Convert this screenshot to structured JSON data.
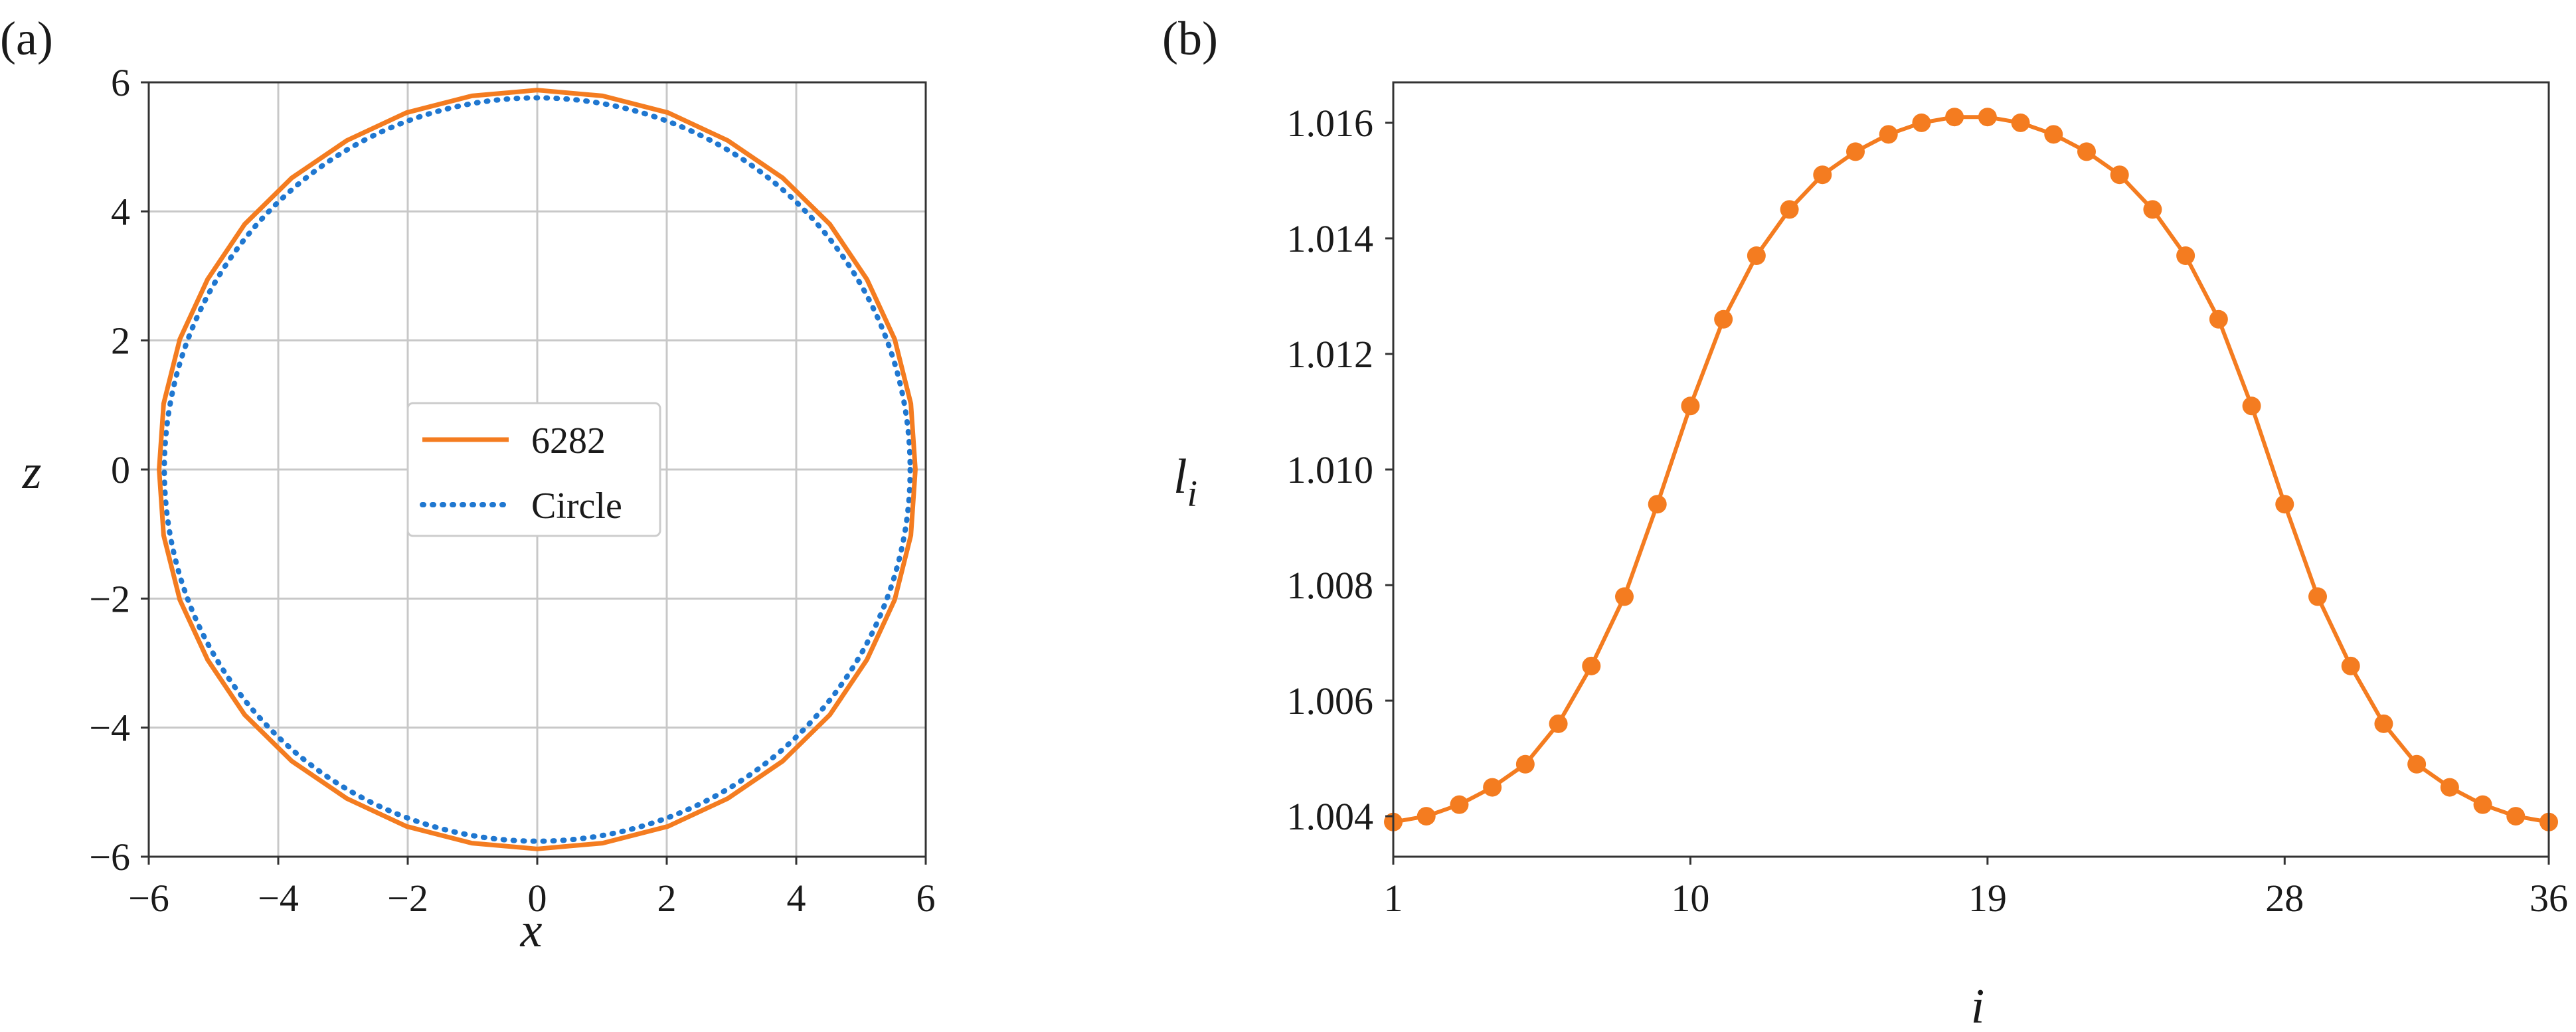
{
  "chart_data": [
    {
      "type": "line",
      "panel_label": "(a)",
      "xlabel": "x",
      "ylabel": "z",
      "xlim": [
        -6,
        6
      ],
      "ylim": [
        -6,
        6
      ],
      "xticks": [
        -6,
        -4,
        -2,
        0,
        2,
        4,
        6
      ],
      "yticks": [
        -6,
        -4,
        -2,
        0,
        2,
        4,
        6
      ],
      "xtick_labels": [
        "−6",
        "−4",
        "−2",
        "0",
        "2",
        "4",
        "6"
      ],
      "ytick_labels": [
        "−6",
        "−4",
        "−2",
        "0",
        "2",
        "4",
        "6"
      ],
      "grid": true,
      "legend_position": "center",
      "series": [
        {
          "name": "6282",
          "color": "#f47c20",
          "style": "solid",
          "shape": "closed polygon of 36 vertices",
          "vertices_x": [
            0.0,
            1.01,
            2.02,
            2.94,
            3.79,
            4.52,
            5.09,
            5.52,
            5.77,
            5.84,
            5.77,
            5.52,
            5.09,
            4.52,
            3.79,
            2.94,
            2.02,
            1.01,
            0.0,
            -1.01,
            -2.02,
            -2.94,
            -3.79,
            -4.52,
            -5.09,
            -5.52,
            -5.77,
            -5.84,
            -5.77,
            -5.52,
            -5.09,
            -4.52,
            -3.79,
            -2.94,
            -2.02,
            -1.01
          ],
          "vertices_z": [
            5.88,
            5.79,
            5.53,
            5.1,
            4.52,
            3.8,
            2.95,
            2.02,
            1.02,
            0.0,
            -1.02,
            -2.02,
            -2.95,
            -3.8,
            -4.52,
            -5.1,
            -5.53,
            -5.79,
            -5.88,
            -5.79,
            -5.53,
            -5.1,
            -4.52,
            -3.8,
            -2.95,
            -2.02,
            -1.02,
            0.0,
            1.02,
            2.02,
            2.95,
            3.8,
            4.52,
            5.1,
            5.53,
            5.79
          ]
        },
        {
          "name": "Circle",
          "color": "#1f77d0",
          "style": "dotted",
          "shape": "circle",
          "center": [
            0,
            0
          ],
          "radius": 5.76
        }
      ]
    },
    {
      "type": "line",
      "panel_label": "(b)",
      "xlabel": "i",
      "ylabel": "l",
      "ylabel_subscript": "i",
      "xlim": [
        1,
        36
      ],
      "ylim": [
        1.0033,
        1.0167
      ],
      "xticks": [
        1,
        10,
        19,
        28,
        36
      ],
      "yticks": [
        1.004,
        1.006,
        1.008,
        1.01,
        1.012,
        1.014,
        1.016
      ],
      "xtick_labels": [
        "1",
        "10",
        "19",
        "28",
        "36"
      ],
      "ytick_labels": [
        "1.004",
        "1.006",
        "1.008",
        "1.010",
        "1.012",
        "1.014",
        "1.016"
      ],
      "grid": false,
      "series": [
        {
          "color": "#f47c20",
          "marker": "circle",
          "x": [
            1,
            2,
            3,
            4,
            5,
            6,
            7,
            8,
            9,
            10,
            11,
            12,
            13,
            14,
            15,
            16,
            17,
            18,
            19,
            20,
            21,
            22,
            23,
            24,
            25,
            26,
            27,
            28,
            29,
            30,
            31,
            32,
            33,
            34,
            35,
            36
          ],
          "y": [
            1.0039,
            1.004,
            1.0042,
            1.0045,
            1.0049,
            1.0056,
            1.0066,
            1.0078,
            1.0094,
            1.0111,
            1.0126,
            1.0137,
            1.0145,
            1.0151,
            1.0155,
            1.0158,
            1.016,
            1.0161,
            1.0161,
            1.016,
            1.0158,
            1.0155,
            1.0151,
            1.0145,
            1.0137,
            1.0126,
            1.0111,
            1.0094,
            1.0078,
            1.0066,
            1.0056,
            1.0049,
            1.0045,
            1.0042,
            1.004,
            1.0039
          ]
        }
      ]
    }
  ]
}
